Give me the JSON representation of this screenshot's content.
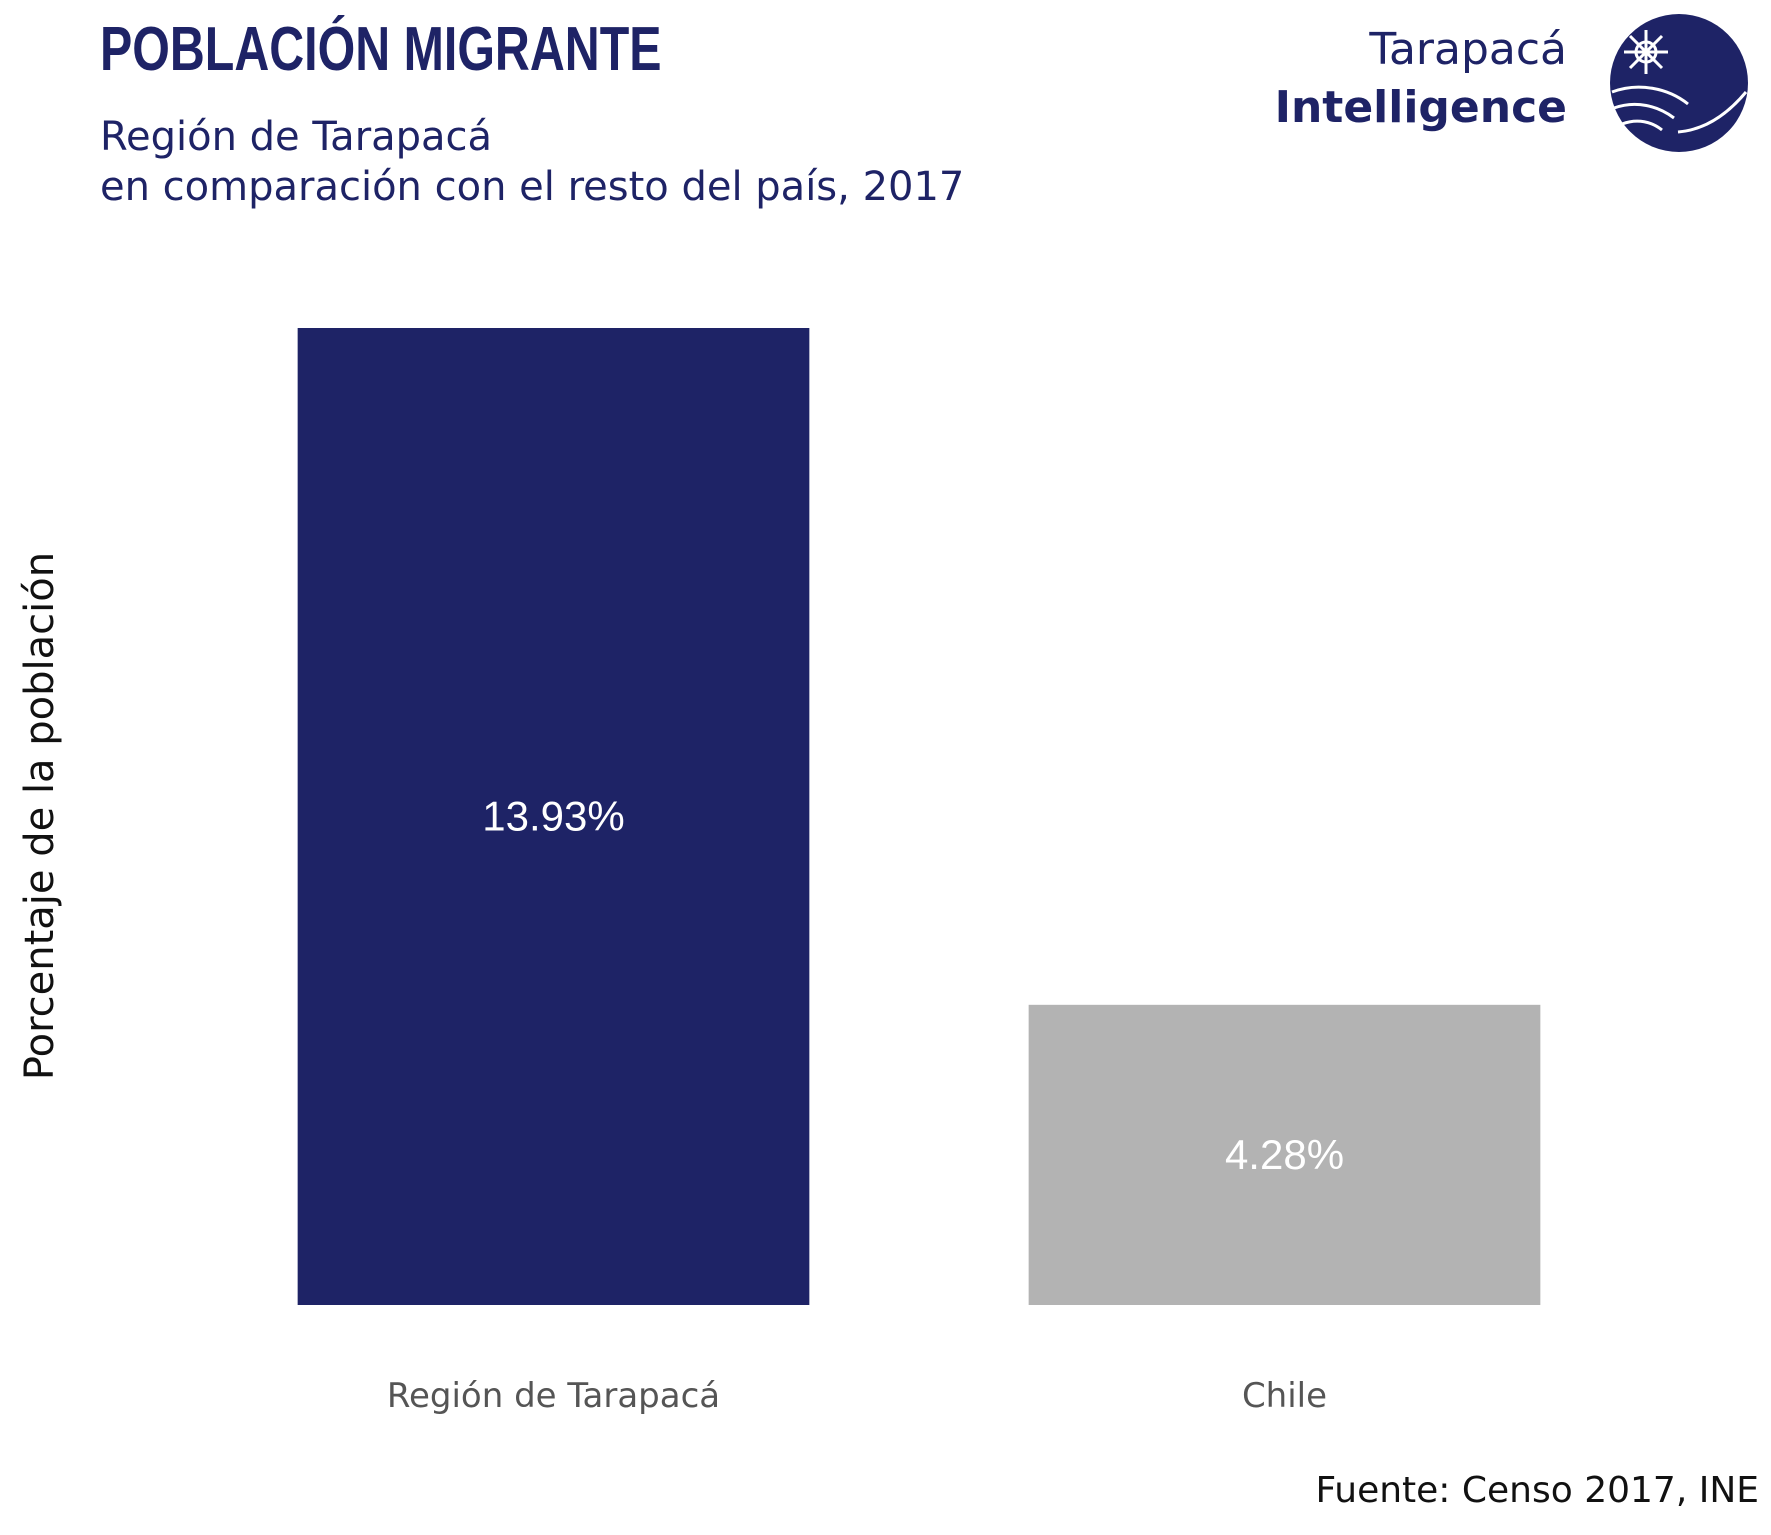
{
  "header": {
    "title": "POBLACIÓN MIGRANTE",
    "subtitle_line1": "Región de Tarapacá",
    "subtitle_line2": "en comparación con el resto del país, 2017"
  },
  "logo": {
    "line1": "Tarapacá",
    "line2": "Intelligence",
    "icon": "globe-emblem-icon"
  },
  "colors": {
    "accent": "#1e2366",
    "highlight_bar": "#1e2366",
    "comparison_bar": "#b3b3b3",
    "bar_label": "#ffffff",
    "tick_label": "#555555"
  },
  "chart_data": {
    "type": "bar",
    "categories": [
      "Región de Tarapacá",
      "Chile"
    ],
    "values": [
      13.93,
      4.28
    ],
    "data_labels": [
      "13.93%",
      "4.28%"
    ],
    "ylabel": "Porcentaje de la población",
    "xlabel": "",
    "ylim": [
      0,
      13.93
    ],
    "grid": false,
    "legend": "none"
  },
  "footer": {
    "source": "Fuente: Censo 2017, INE"
  }
}
